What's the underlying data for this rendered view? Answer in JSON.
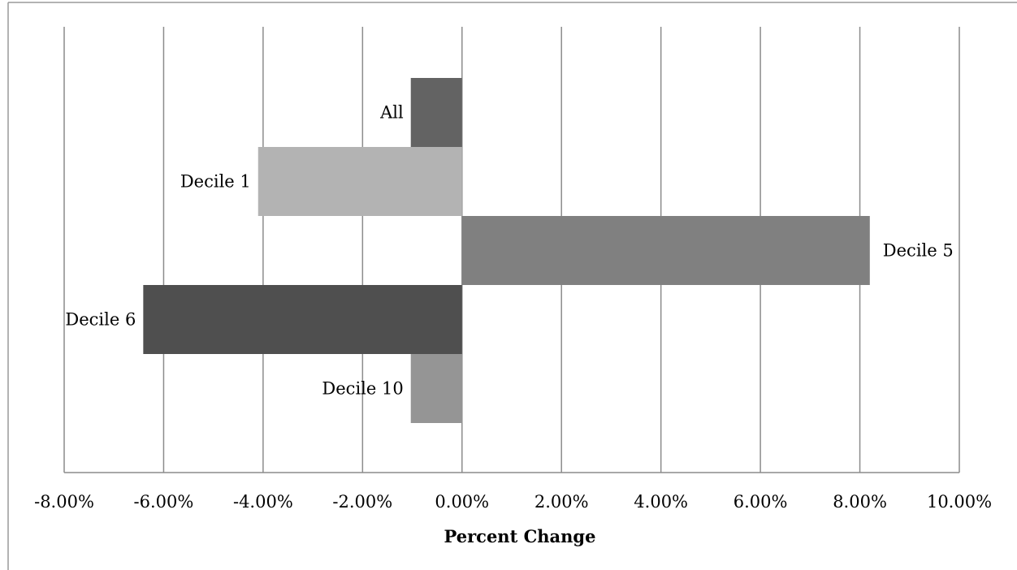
{
  "chart_data": {
    "type": "bar",
    "orientation": "horizontal",
    "title": "",
    "xlabel": "Percent Change",
    "ylabel": "",
    "xlim": [
      -0.08,
      0.1
    ],
    "x_tick_labels": [
      "-8.00%",
      "-6.00%",
      "-4.00%",
      "-2.00%",
      "0.00%",
      "2.00%",
      "4.00%",
      "6.00%",
      "8.00%",
      "10.00%"
    ],
    "grid": "vertical",
    "legend": "none",
    "categories": [
      "All",
      "Decile 1",
      "Decile 5",
      "Decile 6",
      "Decile 10"
    ],
    "values": [
      -0.0103,
      -0.041,
      0.082,
      -0.0641,
      -0.0103
    ],
    "colors": [
      "#636363",
      "#b3b3b3",
      "#808080",
      "#4f4f4f",
      "#959595"
    ]
  }
}
